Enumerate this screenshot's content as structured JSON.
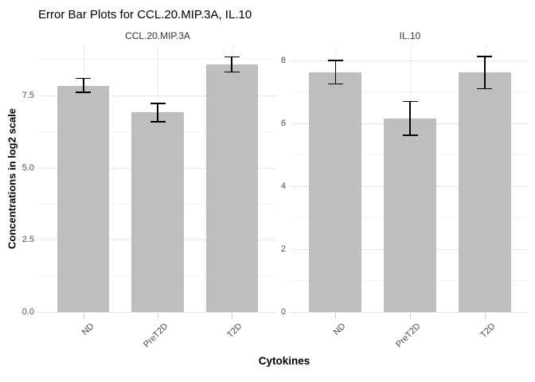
{
  "title": "Error Bar Plots for CCL.20.MIP.3A, IL.10",
  "x_axis_title": "Cytokines",
  "y_axis_title": "Concentrations in log2 scale",
  "colors": {
    "bar_fill": "#BEBEBE",
    "error_bar": "#000000",
    "grid_major": "#E4E4E4",
    "grid_minor": "#F2F2F2",
    "grid_vertical": "#EBEBEB",
    "axis_tick_mark": "#CCCCCC",
    "tick_label": "#4D4D4D",
    "strip_text": "#333333",
    "title_text": "#000000",
    "background": "#FFFFFF"
  },
  "chart_data": [
    {
      "type": "bar",
      "facet_label": "CCL.20.MIP.3A",
      "xlabel": "Cytokines",
      "ylabel": "Concentrations in log2 scale",
      "categories": [
        "ND",
        "PreT2D",
        "T2D"
      ],
      "values": [
        7.82,
        6.92,
        8.57
      ],
      "errors_lower": [
        7.61,
        6.59,
        8.31
      ],
      "errors_upper": [
        8.09,
        7.22,
        8.83
      ],
      "ylim": [
        0,
        9.23
      ],
      "ytick_values": [
        0,
        2.5,
        5,
        7.5
      ],
      "ytick_labels": [
        "0.0",
        "2.5",
        "5.0",
        "7.5"
      ],
      "yminor_values": [
        1.25,
        3.75,
        6.25,
        8.75
      ],
      "grid": "on",
      "legend": "none"
    },
    {
      "type": "bar",
      "facet_label": "IL.10",
      "xlabel": "Cytokines",
      "ylabel": "Concentrations in log2 scale",
      "categories": [
        "ND",
        "PreT2D",
        "T2D"
      ],
      "values": [
        7.63,
        6.16,
        7.63
      ],
      "errors_lower": [
        7.25,
        5.62,
        7.1
      ],
      "errors_upper": [
        8.0,
        6.7,
        8.12
      ],
      "ylim": [
        0,
        8.48
      ],
      "ytick_values": [
        0,
        2,
        4,
        6,
        8
      ],
      "ytick_labels": [
        "0",
        "2",
        "4",
        "6",
        "8"
      ],
      "yminor_values": [
        1,
        3,
        5,
        7
      ],
      "grid": "on",
      "legend": "none"
    }
  ]
}
